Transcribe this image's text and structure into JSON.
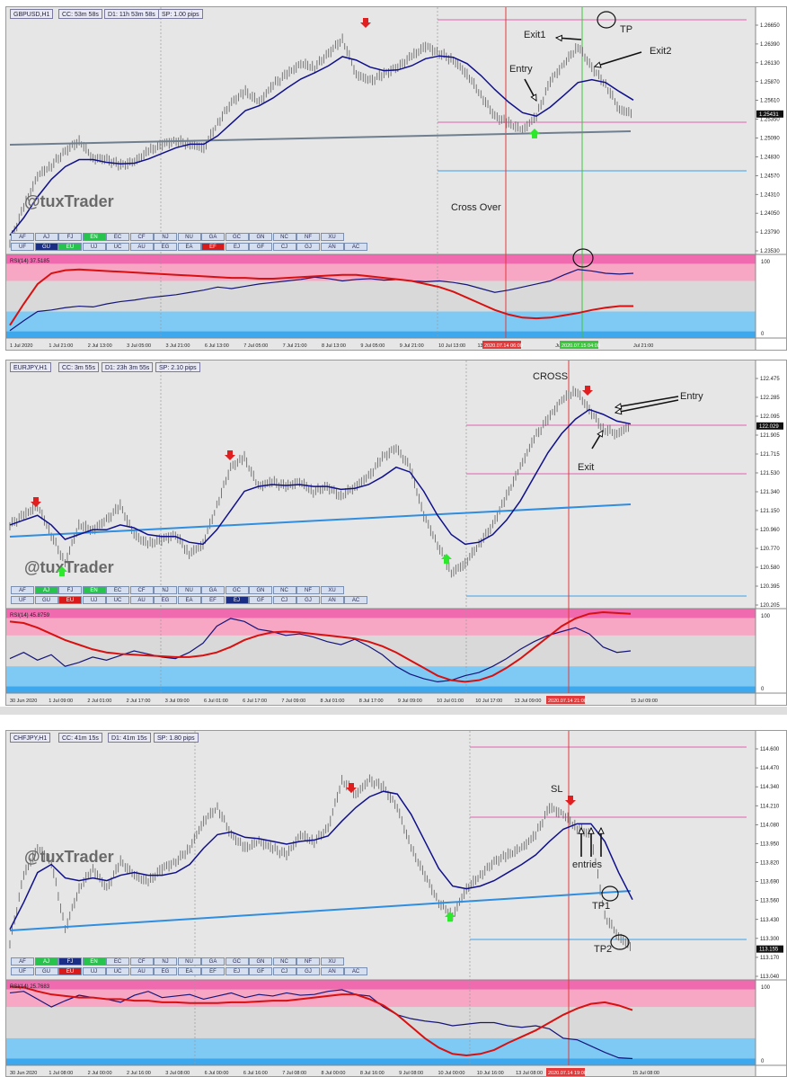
{
  "colors": {
    "bg": "#e6e6e6",
    "price_bar": "#6b6b6b",
    "ma": "#10108c",
    "trend_gray": "#6f7f8f",
    "trend_blue": "#2f8ee0",
    "pink_level": "#e060b0",
    "blue_level": "#3aa0e8",
    "vline_red": "#e23a3a",
    "vline_green": "#3cc53c",
    "rsi_line": "#15157a",
    "rsi_signal": "#d81010",
    "rsi_high_zone": "#f7a6c3",
    "rsi_low_zone": "#7fcaf5",
    "arrow_down": "#e02020",
    "arrow_up": "#2ee82e",
    "btn_green": "#27c44d",
    "btn_red": "#d81a1a",
    "btn_navy": "#1b2e86"
  },
  "panels": [
    {
      "symbol": "GBPUSD,H1",
      "cc": "CC: 53m 58s",
      "d1": "D1: 11h 53m 58s",
      "sp": "SP: 1.00 pips",
      "watermark": "@tuxTrader",
      "price_ticks": [
        "1.26650",
        "1.26390",
        "1.26130",
        "1.25870",
        "1.25610",
        "1.25350",
        "1.25090",
        "1.24830",
        "1.24570",
        "1.24310",
        "1.24050",
        "1.23790",
        "1.23530"
      ],
      "current_price": "1.25431",
      "rsi_label": "RSI(14) 37.5185",
      "rsi_ticks": [
        "100",
        "0"
      ],
      "time_ticks": [
        "1 Jul 2020",
        "1 Jul 21:00",
        "2 Jul 13:00",
        "3 Jul 05:00",
        "3 Jul 21:00",
        "6 Jul 13:00",
        "7 Jul 05:00",
        "7 Jul 21:00",
        "8 Jul 13:00",
        "9 Jul 05:00",
        "9 Jul 21:00",
        "10 Jul 13:00",
        "13 Jul 05:00",
        "",
        "Jul 13:00",
        "",
        "Jul 21:00"
      ],
      "time_highlights": [
        {
          "label": "2020.07.14 06:00",
          "color": "#e23a3a"
        },
        {
          "label": "2020.07.15 04:00",
          "color": "#3cc53c"
        }
      ],
      "annotations": [
        "Exit1",
        "TP",
        "Exit2",
        "Entry",
        "Cross Over"
      ],
      "pair_rows": [
        [
          "AF",
          "AJ",
          "FJ",
          "EN",
          "EC",
          "CF",
          "NJ",
          "NU",
          "GA",
          "GC",
          "GN",
          "NC",
          "NF",
          "XU"
        ],
        [
          "UF",
          "GU",
          "EU",
          "UJ",
          "UC",
          "AU",
          "EG",
          "EA",
          "EF",
          "EJ",
          "GF",
          "CJ",
          "GJ",
          "AN",
          "AC"
        ]
      ],
      "pair_hl": {
        "EN": "#27c44d",
        "GU": "#1b2e86",
        "EU": "#27c44d",
        "EF": "#d81a1a"
      },
      "chart_data": {
        "type": "line",
        "title": "GBPUSD,H1",
        "xlabel": "",
        "ylabel": "",
        "ylim": [
          1.2353,
          1.2675
        ],
        "series": [
          {
            "values": [
              1.236,
              1.241,
              1.2455,
              1.247,
              1.249,
              1.2505,
              1.248,
              1.2478,
              1.247,
              1.2475,
              1.249,
              1.25,
              1.2505,
              1.25,
              1.2495,
              1.253,
              1.256,
              1.2575,
              1.256,
              1.2585,
              1.26,
              1.2615,
              1.261,
              1.263,
              1.265,
              1.26,
              1.259,
              1.26,
              1.261,
              1.2625,
              1.264,
              1.263,
              1.262,
              1.26,
              1.257,
              1.254,
              1.253,
              1.252,
              1.254,
              1.259,
              1.2615,
              1.264,
              1.261,
              1.2585,
              1.255,
              1.2543
            ]
          },
          {
            "values": [
              1.237,
              1.2395,
              1.2425,
              1.245,
              1.2468,
              1.2478,
              1.2478,
              1.2474,
              1.2472,
              1.2473,
              1.2479,
              1.2487,
              1.2495,
              1.25,
              1.25,
              1.2512,
              1.253,
              1.2548,
              1.2555,
              1.2566,
              1.258,
              1.2593,
              1.2602,
              1.2612,
              1.2625,
              1.262,
              1.261,
              1.2605,
              1.2606,
              1.2612,
              1.2622,
              1.2626,
              1.2624,
              1.2615,
              1.2598,
              1.2578,
              1.256,
              1.2545,
              1.254,
              1.2553,
              1.257,
              1.2588,
              1.2592,
              1.2588,
              1.2575,
              1.2563
            ]
          }
        ],
        "sub_chart": {
          "type": "line",
          "ylim": [
            0,
            100
          ],
          "series": [
            {
              "values": [
                5,
                18,
                30,
                32,
                35,
                37,
                36,
                40,
                43,
                45,
                48,
                50,
                52,
                55,
                58,
                62,
                60,
                63,
                66,
                68,
                70,
                72,
                75,
                73,
                70,
                72,
                73,
                71,
                72,
                70,
                69,
                70,
                68,
                65,
                60,
                55,
                58,
                62,
                66,
                70,
                78,
                85,
                83,
                80,
                79,
                80
              ]
            },
            {
              "values": [
                12,
                40,
                66,
                80,
                84,
                85,
                84,
                83,
                82,
                81,
                80,
                79,
                78,
                77,
                76,
                75,
                74,
                74,
                73,
                73,
                74,
                75,
                76,
                77,
                78,
                78,
                76,
                74,
                72,
                70,
                66,
                62,
                56,
                48,
                40,
                32,
                26,
                22,
                21,
                22,
                25,
                28,
                32,
                35,
                37,
                37
              ]
            }
          ]
        }
      }
    },
    {
      "symbol": "EURJPY,H1",
      "cc": "CC: 3m 55s",
      "d1": "D1: 23h 3m 55s",
      "sp": "SP: 2.10 pips",
      "watermark": "@tuxTrader",
      "price_ticks": [
        "122.475",
        "122.285",
        "122.095",
        "121.905",
        "121.715",
        "121.530",
        "121.340",
        "121.150",
        "120.960",
        "120.770",
        "120.580",
        "120.395",
        "120.205"
      ],
      "current_price": "122.029",
      "rsi_label": "RSI(14) 45.8759",
      "rsi_ticks": [
        "100",
        "0"
      ],
      "time_ticks": [
        "30 Jun 2020",
        "1 Jul 09:00",
        "2 Jul 01:00",
        "2 Jul 17:00",
        "3 Jul 09:00",
        "6 Jul 01:00",
        "6 Jul 17:00",
        "7 Jul 09:00",
        "8 Jul 01:00",
        "8 Jul 17:00",
        "9 Jul 09:00",
        "10 Jul 01:00",
        "10 Jul 17:00",
        "13 Jul 09:00",
        "14 Jul 01:",
        "",
        "15 Jul 09:00"
      ],
      "time_highlights": [
        {
          "label": "2020.07.14 21:00",
          "color": "#e23a3a"
        }
      ],
      "annotations": [
        "CROSS",
        "Entry",
        "Exit"
      ],
      "pair_rows": [
        [
          "AF",
          "AJ",
          "FJ",
          "EN",
          "EC",
          "CF",
          "NJ",
          "NU",
          "GA",
          "GC",
          "GN",
          "NC",
          "NF",
          "XU"
        ],
        [
          "UF",
          "GU",
          "EU",
          "UJ",
          "UC",
          "AU",
          "EG",
          "EA",
          "EF",
          "EJ",
          "GF",
          "CJ",
          "GJ",
          "AN",
          "AC"
        ]
      ],
      "pair_hl": {
        "AJ": "#27c44d",
        "EN": "#27c44d",
        "EU": "#d81a1a",
        "EJ": "#1b2e86"
      },
      "chart_data": {
        "type": "line",
        "title": "EURJPY,H1",
        "xlabel": "",
        "ylabel": "",
        "ylim": [
          120.205,
          122.56
        ],
        "series": [
          {
            "values": [
              121.0,
              121.1,
              121.2,
              120.9,
              120.6,
              121.0,
              120.95,
              121.05,
              121.2,
              120.9,
              120.8,
              120.85,
              120.9,
              120.7,
              120.8,
              121.2,
              121.6,
              121.7,
              121.4,
              121.45,
              121.4,
              121.45,
              121.35,
              121.4,
              121.3,
              121.4,
              121.5,
              121.7,
              121.8,
              121.6,
              121.1,
              120.8,
              120.5,
              120.6,
              120.8,
              121.0,
              121.3,
              121.6,
              121.9,
              122.1,
              122.3,
              122.4,
              122.2,
              122.0,
              121.95,
              122.03
            ]
          },
          {
            "values": [
              121.0,
              121.05,
              121.1,
              121.0,
              120.85,
              120.9,
              120.95,
              120.95,
              121.0,
              120.97,
              120.9,
              120.88,
              120.88,
              120.82,
              120.8,
              120.95,
              121.15,
              121.35,
              121.4,
              121.42,
              121.41,
              121.42,
              121.4,
              121.4,
              121.37,
              121.38,
              121.42,
              121.5,
              121.6,
              121.55,
              121.35,
              121.1,
              120.9,
              120.8,
              120.82,
              120.9,
              121.05,
              121.25,
              121.5,
              121.75,
              121.95,
              122.1,
              122.2,
              122.15,
              122.08,
              122.05
            ]
          }
        ],
        "sub_chart": {
          "type": "line",
          "ylim": [
            0,
            100
          ],
          "series": [
            {
              "values": [
                40,
                48,
                38,
                45,
                30,
                35,
                42,
                38,
                44,
                50,
                46,
                42,
                40,
                48,
                60,
                82,
                92,
                88,
                78,
                75,
                70,
                72,
                68,
                62,
                58,
                65,
                56,
                45,
                30,
                20,
                14,
                10,
                12,
                18,
                22,
                30,
                40,
                52,
                62,
                70,
                75,
                80,
                72,
                55,
                48,
                50
              ]
            },
            {
              "values": [
                88,
                86,
                80,
                72,
                64,
                58,
                52,
                48,
                46,
                45,
                44,
                43,
                42,
                42,
                44,
                48,
                55,
                64,
                70,
                74,
                75,
                74,
                72,
                70,
                68,
                66,
                62,
                56,
                48,
                38,
                28,
                18,
                12,
                10,
                12,
                18,
                28,
                40,
                54,
                68,
                82,
                92,
                98,
                100,
                99,
                98
              ]
            }
          ]
        }
      }
    },
    {
      "symbol": "CHFJPY,H1",
      "cc": "CC: 41m 15s",
      "d1": "D1: 41m 15s",
      "sp": "SP: 1.80 pips",
      "watermark": "@tuxTrader",
      "price_ticks": [
        "114.600",
        "114.470",
        "114.340",
        "114.210",
        "114.080",
        "113.950",
        "113.820",
        "113.690",
        "113.560",
        "113.430",
        "113.300",
        "113.170",
        "113.040"
      ],
      "current_price": "113.155",
      "rsi_label": "RSI(14) 25.7683",
      "rsi_ticks": [
        "100",
        "0"
      ],
      "time_ticks": [
        "30 Jun 2020",
        "1 Jul 08:00",
        "2 Jul 00:00",
        "2 Jul 16:00",
        "3 Jul 08:00",
        "6 Jul 00:00",
        "6 Jul 16:00",
        "7 Jul 08:00",
        "8 Jul 00:00",
        "8 Jul 16:00",
        "9 Jul 08:00",
        "10 Jul 00:00",
        "10 Jul 16:00",
        "13 Jul 08:00",
        "14 Jul 0",
        "",
        "15 Jul 08:00"
      ],
      "time_highlights": [
        {
          "label": "2020.07.14 19:00",
          "color": "#e23a3a"
        }
      ],
      "annotations": [
        "SL",
        "entries",
        "TP1",
        "TP2"
      ],
      "pair_rows": [
        [
          "AF",
          "AJ",
          "FJ",
          "EN",
          "EC",
          "CF",
          "NJ",
          "NU",
          "GA",
          "GC",
          "GN",
          "NC",
          "NF",
          "XU"
        ],
        [
          "UF",
          "GU",
          "EU",
          "UJ",
          "UC",
          "AU",
          "EG",
          "EA",
          "EF",
          "EJ",
          "GF",
          "CJ",
          "GJ",
          "AN",
          "AC"
        ]
      ],
      "pair_hl": {
        "AJ": "#27c44d",
        "FJ": "#1b2e86",
        "EN": "#27c44d",
        "EU": "#d81a1a"
      },
      "chart_data": {
        "type": "line",
        "title": "CHFJPY,H1",
        "xlabel": "",
        "ylabel": "",
        "ylim": [
          112.98,
          114.66
        ],
        "series": [
          {
            "values": [
              113.2,
              113.7,
              113.9,
              113.8,
              113.3,
              113.6,
              113.75,
              113.6,
              113.8,
              113.7,
              113.65,
              113.75,
              113.8,
              113.9,
              114.1,
              114.2,
              114.0,
              113.9,
              113.95,
              113.9,
              113.85,
              114.0,
              113.95,
              114.05,
              114.4,
              114.3,
              114.4,
              114.35,
              114.2,
              113.9,
              113.7,
              113.5,
              113.4,
              113.6,
              113.7,
              113.8,
              113.85,
              113.9,
              114.0,
              114.2,
              114.15,
              114.05,
              114.0,
              113.4,
              113.25,
              113.16
            ]
          },
          {
            "values": [
              113.3,
              113.5,
              113.72,
              113.78,
              113.68,
              113.66,
              113.68,
              113.66,
              113.7,
              113.72,
              113.7,
              113.7,
              113.72,
              113.78,
              113.9,
              114.0,
              114.02,
              113.98,
              113.97,
              113.95,
              113.93,
              113.95,
              113.96,
              113.99,
              114.1,
              114.2,
              114.28,
              114.32,
              114.3,
              114.15,
              113.95,
              113.75,
              113.62,
              113.6,
              113.62,
              113.66,
              113.72,
              113.78,
              113.85,
              113.95,
              114.04,
              114.08,
              114.08,
              113.95,
              113.72,
              113.52
            ]
          }
        ],
        "sub_chart": {
          "type": "line",
          "ylim": [
            0,
            100
          ],
          "series": [
            {
              "values": [
                88,
                90,
                80,
                70,
                78,
                85,
                82,
                80,
                76,
                85,
                90,
                82,
                84,
                86,
                80,
                84,
                88,
                82,
                86,
                84,
                88,
                85,
                86,
                90,
                92,
                86,
                84,
                70,
                60,
                55,
                52,
                50,
                46,
                48,
                50,
                50,
                46,
                44,
                46,
                42,
                30,
                28,
                20,
                12,
                5,
                4
              ]
            },
            {
              "values": [
                96,
                95,
                90,
                86,
                84,
                82,
                82,
                80,
                80,
                78,
                78,
                76,
                76,
                75,
                75,
                75,
                76,
                76,
                77,
                78,
                78,
                80,
                82,
                84,
                86,
                86,
                80,
                72,
                60,
                45,
                30,
                18,
                10,
                8,
                10,
                15,
                24,
                32,
                40,
                50,
                60,
                68,
                74,
                76,
                72,
                66
              ]
            }
          ]
        }
      }
    }
  ]
}
